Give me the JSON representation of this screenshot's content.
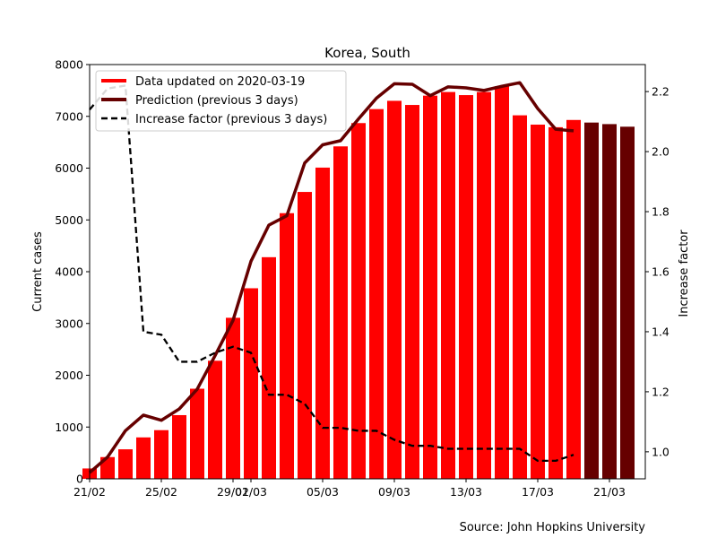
{
  "chart_data": {
    "type": "bar",
    "title": "Korea, South",
    "source": "Source: John Hopkins University",
    "xlabel": "",
    "ylabel": "Current cases",
    "y2label": "Increase factor",
    "ylim": [
      0,
      8000
    ],
    "y2lim": [
      0.91,
      2.29
    ],
    "yticks": [
      0,
      1000,
      2000,
      3000,
      4000,
      5000,
      6000,
      7000,
      8000
    ],
    "y2ticks": [
      "1.0",
      "1.2",
      "1.4",
      "1.6",
      "1.8",
      "2.0",
      "2.2"
    ],
    "x_range": [
      "2020-02-21",
      "2020-03-23"
    ],
    "xtick_labels": [
      "21/02",
      "25/02",
      "29/02",
      "01/03",
      "05/03",
      "09/03",
      "13/03",
      "17/03",
      "21/03"
    ],
    "xtick_dates": [
      "2020-02-21",
      "2020-02-25",
      "2020-02-29",
      "2020-03-01",
      "2020-03-05",
      "2020-03-09",
      "2020-03-13",
      "2020-03-17",
      "2020-03-21"
    ],
    "legend_placement": "top-left",
    "grid": false,
    "colors": {
      "data": "#ff0000",
      "prediction": "#660000",
      "factor": "#000000"
    },
    "series": [
      {
        "name": "Data updated on 2020-03-19",
        "kind": "bar",
        "dates": [
          "2020-02-21",
          "2020-02-22",
          "2020-02-23",
          "2020-02-24",
          "2020-02-25",
          "2020-02-26",
          "2020-02-27",
          "2020-02-28",
          "2020-02-29",
          "2020-03-01",
          "2020-03-02",
          "2020-03-03",
          "2020-03-04",
          "2020-03-05",
          "2020-03-06",
          "2020-03-07",
          "2020-03-08",
          "2020-03-09",
          "2020-03-10",
          "2020-03-11",
          "2020-03-12",
          "2020-03-13",
          "2020-03-14",
          "2020-03-15",
          "2020-03-16",
          "2020-03-17",
          "2020-03-18",
          "2020-03-19"
        ],
        "values": [
          200,
          420,
          570,
          800,
          940,
          1230,
          1740,
          2280,
          3110,
          3680,
          4280,
          5130,
          5540,
          6010,
          6420,
          6870,
          7140,
          7300,
          7220,
          7400,
          7470,
          7410,
          7470,
          7580,
          7020,
          6840,
          6790,
          6930
        ]
      },
      {
        "name": "Prediction (previous 3 days)",
        "kind": "line",
        "dates": [
          "2020-02-21",
          "2020-02-22",
          "2020-02-23",
          "2020-02-24",
          "2020-02-25",
          "2020-02-26",
          "2020-02-27",
          "2020-02-28",
          "2020-02-29",
          "2020-03-01",
          "2020-03-02",
          "2020-03-03",
          "2020-03-04",
          "2020-03-05",
          "2020-03-06",
          "2020-03-07",
          "2020-03-08",
          "2020-03-09",
          "2020-03-10",
          "2020-03-11",
          "2020-03-12",
          "2020-03-13",
          "2020-03-14",
          "2020-03-15",
          "2020-03-16",
          "2020-03-17",
          "2020-03-18",
          "2020-03-19"
        ],
        "values": [
          120,
          420,
          930,
          1230,
          1130,
          1350,
          1730,
          2380,
          3060,
          4200,
          4900,
          5080,
          6100,
          6450,
          6530,
          6950,
          7350,
          7630,
          7620,
          7400,
          7570,
          7550,
          7500,
          7580,
          7650,
          7150,
          6750,
          6720
        ]
      },
      {
        "name": "Increase factor (previous 3 days)",
        "kind": "line-dashed",
        "axis": "right",
        "dates": [
          "2020-02-21",
          "2020-02-22",
          "2020-02-23",
          "2020-02-24",
          "2020-02-25",
          "2020-02-26",
          "2020-02-27",
          "2020-02-28",
          "2020-02-29",
          "2020-03-01",
          "2020-03-02",
          "2020-03-03",
          "2020-03-04",
          "2020-03-05",
          "2020-03-06",
          "2020-03-07",
          "2020-03-08",
          "2020-03-09",
          "2020-03-10",
          "2020-03-11",
          "2020-03-12",
          "2020-03-13",
          "2020-03-14",
          "2020-03-15",
          "2020-03-16",
          "2020-03-17",
          "2020-03-18",
          "2020-03-19"
        ],
        "values": [
          2.14,
          2.21,
          2.22,
          1.4,
          1.39,
          1.3,
          1.3,
          1.33,
          1.35,
          1.33,
          1.19,
          1.19,
          1.16,
          1.08,
          1.08,
          1.07,
          1.07,
          1.04,
          1.02,
          1.02,
          1.01,
          1.01,
          1.01,
          1.01,
          1.01,
          0.97,
          0.97,
          0.99
        ]
      },
      {
        "name": "",
        "kind": "bar-forecast",
        "dates": [
          "2020-03-20",
          "2020-03-21",
          "2020-03-22"
        ],
        "values": [
          6880,
          6850,
          6800
        ]
      }
    ]
  }
}
